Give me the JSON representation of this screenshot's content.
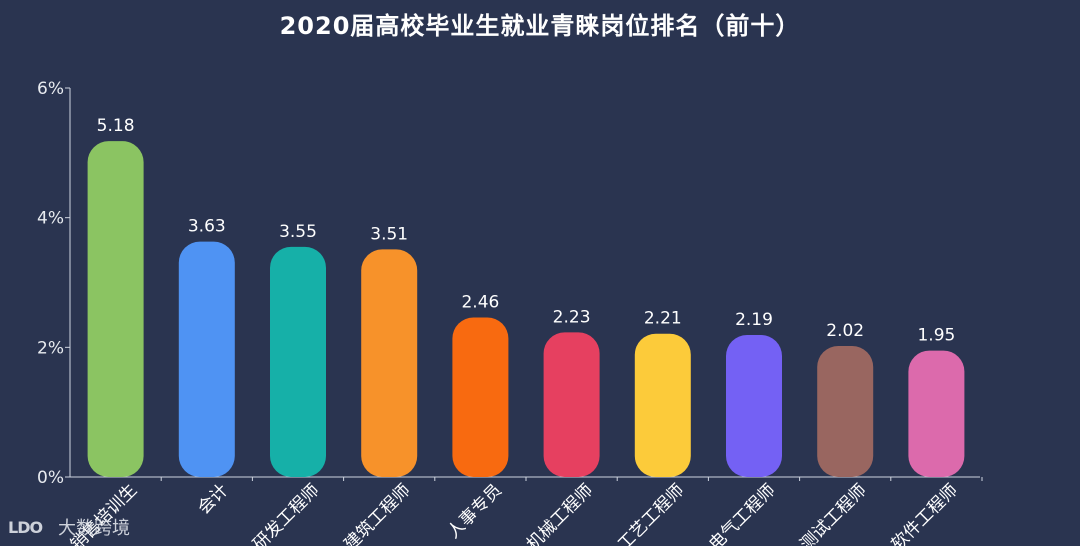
{
  "chart_data": {
    "type": "bar",
    "title": "2020届高校毕业生就业青睐岗位排名（前十）",
    "categories": [
      "销售培训生",
      "会计",
      "研发工程师",
      "建筑工程师",
      "人事专员",
      "机械工程师",
      "工艺工程师",
      "电气工程师",
      "测试工程师",
      "软件工程师"
    ],
    "values": [
      5.18,
      3.63,
      3.55,
      3.51,
      2.46,
      2.23,
      2.21,
      2.19,
      2.02,
      1.95
    ],
    "value_labels": [
      "5.18",
      "3.63",
      "3.55",
      "3.51",
      "2.46",
      "2.23",
      "2.21",
      "2.19",
      "2.02",
      "1.95"
    ],
    "colors": [
      "#8bc462",
      "#4f93f3",
      "#16b0a8",
      "#f7922a",
      "#f86a10",
      "#e64060",
      "#fccb3a",
      "#7461f4",
      "#996660",
      "#dc6aac"
    ],
    "ylim": [
      0,
      6
    ],
    "yticks": [
      0,
      2,
      4,
      6
    ],
    "ytick_labels": [
      "0%",
      "2%",
      "4%",
      "6%"
    ],
    "xlabel": "",
    "ylabel": "",
    "grid": false,
    "legend": "none"
  },
  "watermark": {
    "logo_text": "LDO",
    "text": "大数跨境"
  }
}
